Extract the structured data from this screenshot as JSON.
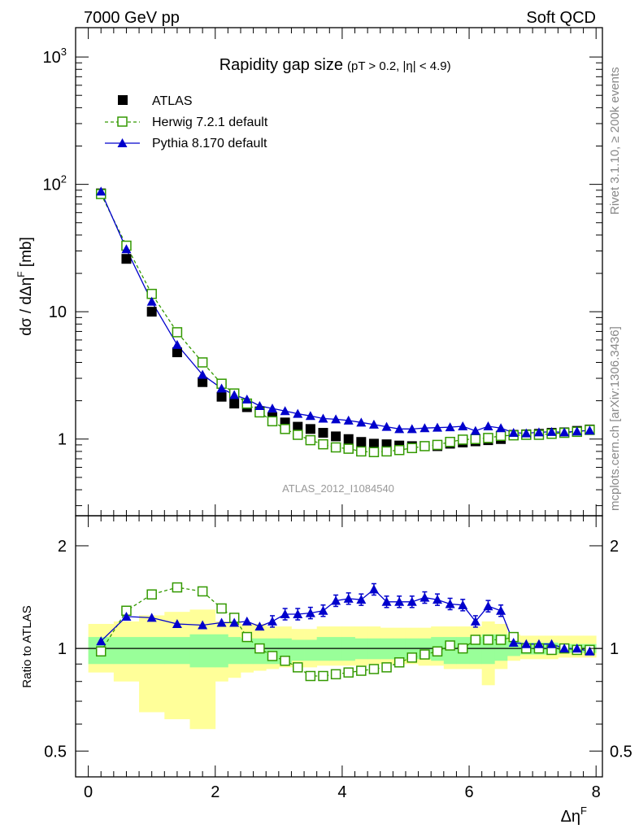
{
  "header": {
    "left": "7000 GeV pp",
    "right": "Soft QCD"
  },
  "side_text": {
    "rivet": "Rivet 3.1.10, ≥ 200k events",
    "mcplots": "mcplots.cern.ch [arXiv:1306.3436]"
  },
  "watermark": "ATLAS_2012_I1084540",
  "colors": {
    "atlas": "#000000",
    "herwig": "#339900",
    "pythia": "#0000cc",
    "band_inner": "#99ff99",
    "band_outer": "#ffff99"
  },
  "chart_data": {
    "type": "scatter",
    "title": "Rapidity gap size",
    "title_suffix": "(pT > 0.2, |η| < 4.9)",
    "xlabel": "Δη",
    "xlabel_sup": "F",
    "ylabel": "dσ / dΔη",
    "ylabel_sup": "F",
    "ylabel_unit": " [mb]",
    "ratio_ylabel": "Ratio to ATLAS",
    "xlim": [
      -0.2,
      8.1
    ],
    "ylim": [
      0.25,
      1700
    ],
    "yscale": "log",
    "ratio_ylim": [
      0.42,
      2.45
    ],
    "ratio_yscale": "log",
    "x_ticks": [
      0,
      2,
      4,
      6,
      8
    ],
    "main_y_ticks": [
      {
        "v": 1,
        "label": "1"
      },
      {
        "v": 10,
        "label": "10"
      },
      {
        "v": 100,
        "label": "10",
        "sup": "2"
      },
      {
        "v": 1000,
        "label": "10",
        "sup": "3"
      }
    ],
    "ratio_y_ticks": [
      {
        "v": 0.5,
        "label": "0.5"
      },
      {
        "v": 1,
        "label": "1"
      },
      {
        "v": 2,
        "label": "2"
      }
    ],
    "legend_position": "top-left",
    "x": [
      0.2,
      0.6,
      1.0,
      1.4,
      1.8,
      2.1,
      2.3,
      2.5,
      2.7,
      2.9,
      3.1,
      3.3,
      3.5,
      3.7,
      3.9,
      4.1,
      4.3,
      4.5,
      4.7,
      4.9,
      5.1,
      5.3,
      5.5,
      5.7,
      5.9,
      6.1,
      6.3,
      6.5,
      6.7,
      6.9,
      7.1,
      7.3,
      7.5,
      7.7,
      7.9
    ],
    "series": [
      {
        "name": "ATLAS",
        "style": "filled-square",
        "values": [
          85,
          26,
          10,
          4.8,
          2.8,
          2.15,
          1.9,
          1.78,
          1.65,
          1.48,
          1.35,
          1.25,
          1.2,
          1.12,
          1.05,
          1.0,
          0.95,
          0.92,
          0.91,
          0.89,
          0.88,
          0.88,
          0.88,
          0.92,
          0.94,
          0.96,
          0.98,
          1.0,
          1.08,
          1.09,
          1.1,
          1.12,
          1.13,
          1.16,
          1.19
        ]
      },
      {
        "name": "Herwig 7.2.1 default",
        "style": "open-square-dashed",
        "values": [
          84,
          33,
          13.8,
          6.9,
          4.0,
          2.72,
          2.28,
          1.9,
          1.62,
          1.38,
          1.2,
          1.08,
          0.98,
          0.91,
          0.86,
          0.84,
          0.8,
          0.79,
          0.8,
          0.82,
          0.85,
          0.88,
          0.9,
          0.95,
          0.99,
          1.0,
          1.02,
          1.06,
          1.07,
          1.08,
          1.08,
          1.1,
          1.12,
          1.14,
          1.18
        ]
      },
      {
        "name": "Pythia 8.170 default",
        "style": "filled-triangle-line",
        "values": [
          88,
          31,
          12,
          5.5,
          3.2,
          2.5,
          2.22,
          2.05,
          1.82,
          1.74,
          1.66,
          1.58,
          1.52,
          1.45,
          1.43,
          1.4,
          1.35,
          1.3,
          1.25,
          1.2,
          1.2,
          1.22,
          1.23,
          1.24,
          1.26,
          1.16,
          1.26,
          1.22,
          1.12,
          1.11,
          1.13,
          1.14,
          1.13,
          1.15,
          1.17
        ]
      }
    ],
    "ratio_series": [
      {
        "name": "Herwig 7.2.1 default",
        "values": [
          0.98,
          1.29,
          1.44,
          1.51,
          1.47,
          1.31,
          1.23,
          1.08,
          1.0,
          0.95,
          0.92,
          0.88,
          0.83,
          0.83,
          0.84,
          0.85,
          0.86,
          0.87,
          0.88,
          0.91,
          0.94,
          0.96,
          0.98,
          1.02,
          1.0,
          1.06,
          1.06,
          1.06,
          1.08,
          1.0,
          1.0,
          0.99,
          1.0,
          0.99,
          0.99
        ]
      },
      {
        "name": "Pythia 8.170 default",
        "values": [
          1.05,
          1.24,
          1.23,
          1.18,
          1.17,
          1.19,
          1.19,
          1.2,
          1.16,
          1.2,
          1.26,
          1.26,
          1.27,
          1.29,
          1.38,
          1.4,
          1.39,
          1.49,
          1.37,
          1.37,
          1.37,
          1.41,
          1.39,
          1.35,
          1.34,
          1.2,
          1.33,
          1.29,
          1.04,
          1.03,
          1.03,
          1.03,
          1.0,
          1.0,
          0.98
        ]
      }
    ],
    "bands": {
      "x_edges": [
        0.0,
        0.4,
        0.8,
        1.2,
        1.6,
        2.0,
        2.2,
        2.4,
        2.6,
        2.8,
        3.0,
        3.2,
        3.4,
        3.6,
        3.8,
        4.0,
        4.2,
        4.4,
        4.6,
        4.8,
        5.0,
        5.2,
        5.4,
        5.6,
        5.8,
        6.0,
        6.2,
        6.4,
        6.6,
        6.8,
        7.0,
        7.2,
        7.4,
        7.6,
        7.8,
        8.0
      ],
      "inner_lo": [
        0.9,
        0.9,
        0.9,
        0.9,
        0.88,
        0.88,
        0.9,
        0.9,
        0.9,
        0.9,
        0.9,
        0.92,
        0.92,
        0.92,
        0.92,
        0.92,
        0.93,
        0.93,
        0.93,
        0.93,
        0.93,
        0.93,
        0.92,
        0.9,
        0.9,
        0.9,
        0.9,
        0.92,
        0.95,
        0.96,
        0.96,
        0.96,
        0.97,
        0.97,
        0.97
      ],
      "inner_hi": [
        1.08,
        1.08,
        1.08,
        1.08,
        1.1,
        1.1,
        1.08,
        1.07,
        1.07,
        1.07,
        1.07,
        1.06,
        1.06,
        1.08,
        1.08,
        1.08,
        1.07,
        1.07,
        1.07,
        1.07,
        1.07,
        1.07,
        1.08,
        1.08,
        1.08,
        1.08,
        1.1,
        1.1,
        1.05,
        1.04,
        1.04,
        1.04,
        1.03,
        1.03,
        1.03
      ],
      "outer_lo": [
        0.85,
        0.8,
        0.65,
        0.62,
        0.58,
        0.8,
        0.82,
        0.85,
        0.86,
        0.87,
        0.88,
        0.88,
        0.88,
        0.89,
        0.89,
        0.89,
        0.89,
        0.9,
        0.9,
        0.9,
        0.9,
        0.89,
        0.89,
        0.87,
        0.87,
        0.87,
        0.78,
        0.87,
        0.92,
        0.93,
        0.93,
        0.93,
        0.94,
        0.94,
        0.94
      ],
      "outer_hi": [
        1.18,
        1.2,
        1.25,
        1.28,
        1.3,
        1.2,
        1.2,
        1.18,
        1.18,
        1.16,
        1.16,
        1.14,
        1.14,
        1.16,
        1.16,
        1.16,
        1.16,
        1.16,
        1.15,
        1.15,
        1.15,
        1.15,
        1.16,
        1.16,
        1.16,
        1.16,
        1.2,
        1.18,
        1.1,
        1.09,
        1.09,
        1.09,
        1.09,
        1.09,
        1.09
      ]
    }
  }
}
